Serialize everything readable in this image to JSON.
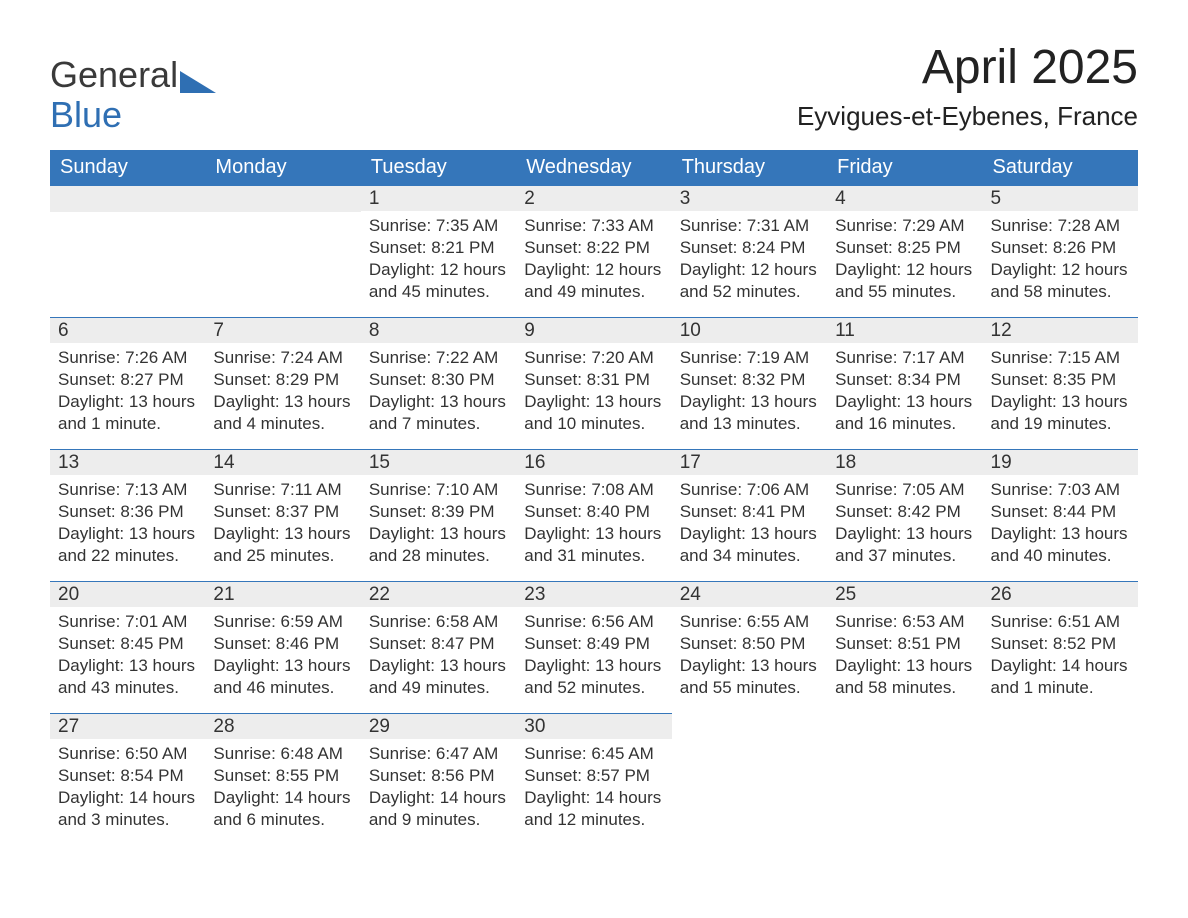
{
  "brand": {
    "word1": "General",
    "word2": "Blue"
  },
  "title": "April 2025",
  "location": "Eyvigues-et-Eybenes, France",
  "colors": {
    "header_bg": "#3576ba",
    "header_text": "#ffffff",
    "daynum_bg": "#ededed",
    "row_border": "#3576ba",
    "body_text": "#333333",
    "logo_blue": "#2f6fb3"
  },
  "day_headers": [
    "Sunday",
    "Monday",
    "Tuesday",
    "Wednesday",
    "Thursday",
    "Friday",
    "Saturday"
  ],
  "weeks": [
    [
      null,
      null,
      {
        "num": "1",
        "sunrise": "Sunrise: 7:35 AM",
        "sunset": "Sunset: 8:21 PM",
        "daylight": "Daylight: 12 hours and 45 minutes."
      },
      {
        "num": "2",
        "sunrise": "Sunrise: 7:33 AM",
        "sunset": "Sunset: 8:22 PM",
        "daylight": "Daylight: 12 hours and 49 minutes."
      },
      {
        "num": "3",
        "sunrise": "Sunrise: 7:31 AM",
        "sunset": "Sunset: 8:24 PM",
        "daylight": "Daylight: 12 hours and 52 minutes."
      },
      {
        "num": "4",
        "sunrise": "Sunrise: 7:29 AM",
        "sunset": "Sunset: 8:25 PM",
        "daylight": "Daylight: 12 hours and 55 minutes."
      },
      {
        "num": "5",
        "sunrise": "Sunrise: 7:28 AM",
        "sunset": "Sunset: 8:26 PM",
        "daylight": "Daylight: 12 hours and 58 minutes."
      }
    ],
    [
      {
        "num": "6",
        "sunrise": "Sunrise: 7:26 AM",
        "sunset": "Sunset: 8:27 PM",
        "daylight": "Daylight: 13 hours and 1 minute."
      },
      {
        "num": "7",
        "sunrise": "Sunrise: 7:24 AM",
        "sunset": "Sunset: 8:29 PM",
        "daylight": "Daylight: 13 hours and 4 minutes."
      },
      {
        "num": "8",
        "sunrise": "Sunrise: 7:22 AM",
        "sunset": "Sunset: 8:30 PM",
        "daylight": "Daylight: 13 hours and 7 minutes."
      },
      {
        "num": "9",
        "sunrise": "Sunrise: 7:20 AM",
        "sunset": "Sunset: 8:31 PM",
        "daylight": "Daylight: 13 hours and 10 minutes."
      },
      {
        "num": "10",
        "sunrise": "Sunrise: 7:19 AM",
        "sunset": "Sunset: 8:32 PM",
        "daylight": "Daylight: 13 hours and 13 minutes."
      },
      {
        "num": "11",
        "sunrise": "Sunrise: 7:17 AM",
        "sunset": "Sunset: 8:34 PM",
        "daylight": "Daylight: 13 hours and 16 minutes."
      },
      {
        "num": "12",
        "sunrise": "Sunrise: 7:15 AM",
        "sunset": "Sunset: 8:35 PM",
        "daylight": "Daylight: 13 hours and 19 minutes."
      }
    ],
    [
      {
        "num": "13",
        "sunrise": "Sunrise: 7:13 AM",
        "sunset": "Sunset: 8:36 PM",
        "daylight": "Daylight: 13 hours and 22 minutes."
      },
      {
        "num": "14",
        "sunrise": "Sunrise: 7:11 AM",
        "sunset": "Sunset: 8:37 PM",
        "daylight": "Daylight: 13 hours and 25 minutes."
      },
      {
        "num": "15",
        "sunrise": "Sunrise: 7:10 AM",
        "sunset": "Sunset: 8:39 PM",
        "daylight": "Daylight: 13 hours and 28 minutes."
      },
      {
        "num": "16",
        "sunrise": "Sunrise: 7:08 AM",
        "sunset": "Sunset: 8:40 PM",
        "daylight": "Daylight: 13 hours and 31 minutes."
      },
      {
        "num": "17",
        "sunrise": "Sunrise: 7:06 AM",
        "sunset": "Sunset: 8:41 PM",
        "daylight": "Daylight: 13 hours and 34 minutes."
      },
      {
        "num": "18",
        "sunrise": "Sunrise: 7:05 AM",
        "sunset": "Sunset: 8:42 PM",
        "daylight": "Daylight: 13 hours and 37 minutes."
      },
      {
        "num": "19",
        "sunrise": "Sunrise: 7:03 AM",
        "sunset": "Sunset: 8:44 PM",
        "daylight": "Daylight: 13 hours and 40 minutes."
      }
    ],
    [
      {
        "num": "20",
        "sunrise": "Sunrise: 7:01 AM",
        "sunset": "Sunset: 8:45 PM",
        "daylight": "Daylight: 13 hours and 43 minutes."
      },
      {
        "num": "21",
        "sunrise": "Sunrise: 6:59 AM",
        "sunset": "Sunset: 8:46 PM",
        "daylight": "Daylight: 13 hours and 46 minutes."
      },
      {
        "num": "22",
        "sunrise": "Sunrise: 6:58 AM",
        "sunset": "Sunset: 8:47 PM",
        "daylight": "Daylight: 13 hours and 49 minutes."
      },
      {
        "num": "23",
        "sunrise": "Sunrise: 6:56 AM",
        "sunset": "Sunset: 8:49 PM",
        "daylight": "Daylight: 13 hours and 52 minutes."
      },
      {
        "num": "24",
        "sunrise": "Sunrise: 6:55 AM",
        "sunset": "Sunset: 8:50 PM",
        "daylight": "Daylight: 13 hours and 55 minutes."
      },
      {
        "num": "25",
        "sunrise": "Sunrise: 6:53 AM",
        "sunset": "Sunset: 8:51 PM",
        "daylight": "Daylight: 13 hours and 58 minutes."
      },
      {
        "num": "26",
        "sunrise": "Sunrise: 6:51 AM",
        "sunset": "Sunset: 8:52 PM",
        "daylight": "Daylight: 14 hours and 1 minute."
      }
    ],
    [
      {
        "num": "27",
        "sunrise": "Sunrise: 6:50 AM",
        "sunset": "Sunset: 8:54 PM",
        "daylight": "Daylight: 14 hours and 3 minutes."
      },
      {
        "num": "28",
        "sunrise": "Sunrise: 6:48 AM",
        "sunset": "Sunset: 8:55 PM",
        "daylight": "Daylight: 14 hours and 6 minutes."
      },
      {
        "num": "29",
        "sunrise": "Sunrise: 6:47 AM",
        "sunset": "Sunset: 8:56 PM",
        "daylight": "Daylight: 14 hours and 9 minutes."
      },
      {
        "num": "30",
        "sunrise": "Sunrise: 6:45 AM",
        "sunset": "Sunset: 8:57 PM",
        "daylight": "Daylight: 14 hours and 12 minutes."
      },
      null,
      null,
      null
    ]
  ]
}
